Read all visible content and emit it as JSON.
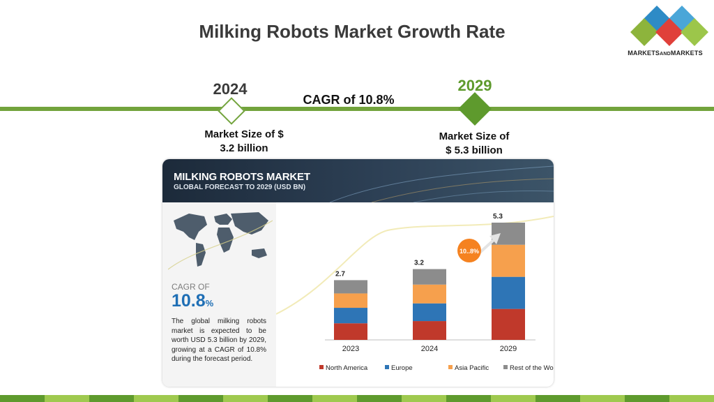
{
  "header": {
    "title": "Milking Robots Market Growth Rate",
    "logo_text_a": "MARKETS",
    "logo_text_b": "AND",
    "logo_text_c": "MARKETS"
  },
  "timeline": {
    "start_year": "2024",
    "end_year": "2029",
    "cagr_label": "CAGR of 10.8%",
    "start_size_line1": "Market Size of $",
    "start_size_line2": "3.2 billion",
    "end_size_line1": "Market Size of",
    "end_size_line2": "$ 5.3 billion"
  },
  "panel": {
    "title": "MILKING ROBOTS MARKET",
    "subtitle": "GLOBAL FORECAST TO 2029 (USD BN)",
    "cagr_of": "CAGR OF",
    "cagr_value": "10.8",
    "cagr_pct": "%",
    "description": "The global milking robots market is expected to be worth USD 5.3 billion by 2029, growing at a CAGR of 10.8% during the forecast period.",
    "cagr_bubble": "10..8%"
  },
  "colors": {
    "accent_green": "#72a33c",
    "dark_green": "#5e9a2d",
    "north_america": "#c0392b",
    "europe": "#2e75b6",
    "asia_pacific": "#f6a04d",
    "rest_of_world": "#8c8c8c",
    "bubble": "#f58220"
  },
  "chart_data": {
    "type": "bar",
    "stacked": true,
    "categories": [
      "2023",
      "2024",
      "2029"
    ],
    "totals": [
      "2.7",
      "3.2",
      "5.3"
    ],
    "series": [
      {
        "name": "North America",
        "values": [
          0.75,
          0.85,
          1.4
        ]
      },
      {
        "name": "Europe",
        "values": [
          0.7,
          0.8,
          1.45
        ]
      },
      {
        "name": "Asia Pacific",
        "values": [
          0.65,
          0.85,
          1.45
        ]
      },
      {
        "name": "Rest of the World",
        "values": [
          0.6,
          0.7,
          1.0
        ]
      }
    ],
    "title": "MILKING ROBOTS MARKET",
    "ylim": [
      0,
      5.3
    ],
    "legend_position": "bottom",
    "grid": false
  }
}
